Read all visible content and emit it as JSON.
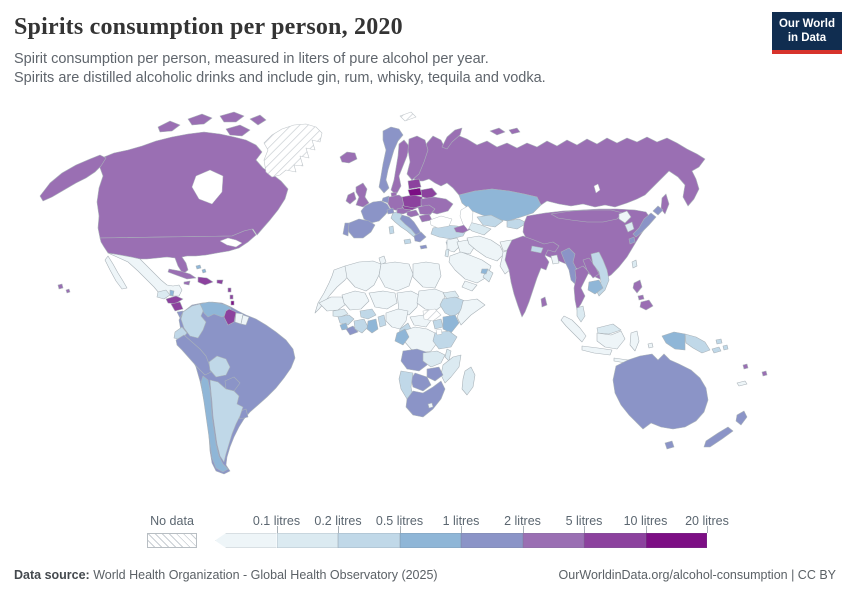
{
  "header": {
    "title": "Spirits consumption per person, 2020",
    "subtitle_line1": "Spirit consumption per person, measured in liters of pure alcohol per year.",
    "subtitle_line2": "Spirits are distilled alcoholic drinks and include gin, rum, whisky, tequila and vodka.",
    "logo_line1": "Our World",
    "logo_line2": "in Data",
    "logo_bg": "#102d50",
    "logo_accent": "#d7332c"
  },
  "legend": {
    "no_data_label": "No data",
    "tick_labels": [
      "0.1 litres",
      "0.2 litres",
      "0.5 litres",
      "1 litres",
      "2 litres",
      "5 litres",
      "10 litres",
      "20 litres"
    ]
  },
  "footer": {
    "source_label": "Data source:",
    "source_text": " World Health Organization - Global Health Observatory (2025)",
    "credit": "OurWorldinData.org/alcohol-consumption | CC BY"
  },
  "chart_data": {
    "type": "heatmap",
    "subtype": "world-choropleth",
    "title": "Spirits consumption per person, 2020",
    "unit": "liters of pure alcohol per year",
    "no_data_color": "hatched",
    "bins": [
      {
        "label": "<0.1 litres",
        "color": "#eef5f8"
      },
      {
        "label": "0.1-0.2 litres",
        "color": "#dbeaf1"
      },
      {
        "label": "0.2-0.5 litres",
        "color": "#c0d8e8"
      },
      {
        "label": "0.5-1 litres",
        "color": "#8fb6d7"
      },
      {
        "label": "1-2 litres",
        "color": "#8b94c7"
      },
      {
        "label": "2-5 litres",
        "color": "#9a6fb3"
      },
      {
        "label": "5-10 litres",
        "color": "#8c429e"
      },
      {
        "label": "10-20 litres",
        "color": "#7c0e84"
      }
    ],
    "region_bins": {
      "canada": 5,
      "alaska": 5,
      "usa": 5,
      "hawaii-1": 5,
      "hawaii-2": 5,
      "canada-arctic-1": 5,
      "canada-arctic-2": 5,
      "canada-arctic-3": 5,
      "canada-arctic-4": 5,
      "canada-arctic-5": 5,
      "greenland": "nd",
      "svalbard": "nd",
      "south-sudan": "nd",
      "mexico": 0,
      "mexico-baja": 0,
      "guatemala": 1,
      "belize": 3,
      "honduras": 6,
      "nicaragua": 6,
      "costa-rica": 4,
      "panama": 4,
      "cuba": 5,
      "jamaica": 5,
      "hispaniola": 6,
      "puerto-rico": 6,
      "bahamas-1": 3,
      "bahamas-2": 3,
      "lesser-antilles-1": 6,
      "lesser-antilles-2": 6,
      "lesser-antilles-3": 7,
      "trinidad-and-tobago": 7,
      "brazil": 4,
      "colombia": 2,
      "venezuela": 3,
      "guyana": 6,
      "suriname": 0,
      "french-guiana": 0,
      "ecuador": 2,
      "peru": 4,
      "bolivia": 2,
      "paraguay": 4,
      "uruguay": 4,
      "chile": 3,
      "argentina": 2,
      "iceland": 5,
      "ireland": 5,
      "uk": 5,
      "norway": 4,
      "sweden": 5,
      "finland": 5,
      "denmark": 5,
      "germany": 5,
      "netherlands-belgium": 4,
      "france": 4,
      "spain": 4,
      "portugal": 4,
      "italy": 2,
      "sardinia": 2,
      "sicily": 2,
      "switzerland": 4,
      "austria": 5,
      "czech-slovakia": 6,
      "poland": 6,
      "estonia-latvia": 6,
      "lithuania": 7,
      "belarus": 6,
      "ukraine": 5,
      "hungary": 5,
      "romania": 5,
      "bulgaria": 5,
      "balkans": 4,
      "greece": 4,
      "crete": 4,
      "russia": 5,
      "novaya-zemlya": 5,
      "russia-arctic-1": 5,
      "russia-arctic-2": 5,
      "sakhalin": 5,
      "turkey": 2,
      "cyprus": 2,
      "caucasus": 5,
      "kazakhstan": 3,
      "uzbekistan": 2,
      "turkmenistan": 1,
      "kyrgyzstan-tajikistan": 2,
      "levant": 0,
      "israel": 1,
      "iraq": 0,
      "iran": 0,
      "afghanistan": 0,
      "pakistan": 0,
      "saudi-arabia": 0,
      "yemen": 0,
      "oman": 1,
      "uae": 3,
      "morocco": 0,
      "algeria": 0,
      "tunisia": 0,
      "libya": 0,
      "egypt": 0,
      "mauritania": 0,
      "mali": 0,
      "niger": 0,
      "chad": 0,
      "sudan": 0,
      "senegal": 1,
      "guinea": 2,
      "sierra-leone": 3,
      "liberia": 4,
      "ivory-coast": 2,
      "burkina-faso": 2,
      "ghana": 3,
      "togo-benin": 2,
      "nigeria": 0,
      "cameroon": 2,
      "central-african-republic": 0,
      "eritrea-djibouti": 1,
      "ethiopia": 2,
      "somalia": 0,
      "uganda": 2,
      "kenya": 3,
      "drc": 0,
      "gabon-congo": 3,
      "tanzania": 2,
      "angola": 4,
      "zambia": 1,
      "malawi": 1,
      "mozambique": 1,
      "zimbabwe": 4,
      "botswana": 4,
      "namibia": 2,
      "south-africa": 4,
      "lesotho": 0,
      "madagascar": 1,
      "india": 5,
      "nepal": 2,
      "bangladesh": 0,
      "sri-lanka": 5,
      "myanmar": 4,
      "thailand": 5,
      "laos": 5,
      "vietnam": 2,
      "cambodia": 3,
      "malaysia-peninsular": 1,
      "malaysia-borneo": 1,
      "indonesia-sumatra": 0,
      "indonesia-java": 0,
      "indonesia-borneo": 0,
      "indonesia-sulawesi": 0,
      "indonesia-lesser-sunda": 0,
      "indonesia-maluku": 0,
      "west-papua": 3,
      "papua-new-guinea": 2,
      "new-britain": 2,
      "solomon-islands-1": 2,
      "solomon-islands-2": 2,
      "china": 5,
      "mongolia": 5,
      "north-korea": 0,
      "south-korea": 1,
      "japan-hokkaido": 4,
      "japan-honshu": 4,
      "japan-kyushu": 4,
      "taiwan": 1,
      "philippines-luzon": 5,
      "philippines-visayas": 5,
      "philippines-mindanao": 5,
      "australia": 4,
      "tasmania": 4,
      "new-zealand-north": 4,
      "new-zealand-south": 4,
      "fiji": 5,
      "vanuatu": 5,
      "new-caledonia": 0
    }
  }
}
